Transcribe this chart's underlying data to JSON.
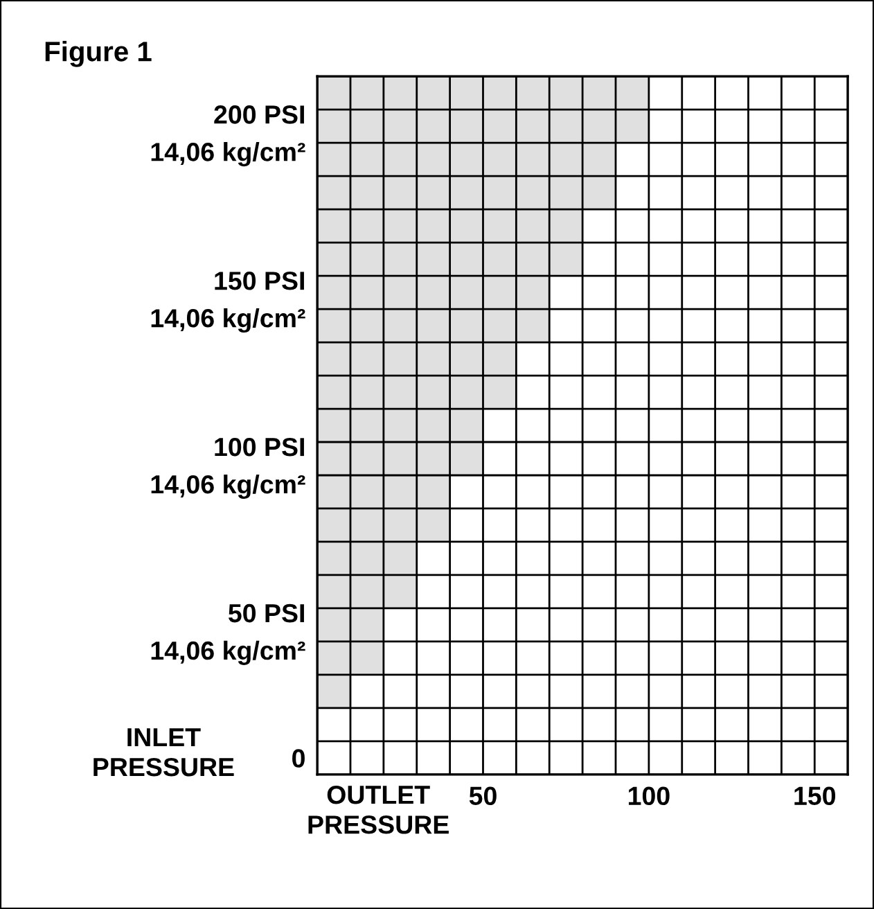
{
  "chart_data": {
    "type": "bar",
    "orientation": "horizontal",
    "title": "Figure 1",
    "xlabel": "OUTLET\nPRESSURE",
    "ylabel": "INLET\nPRESSURE",
    "categories": [
      null,
      "200 PSI\n14,06 kg/cm²",
      null,
      null,
      null,
      null,
      "150 PSI\n14,06 kg/cm²",
      null,
      null,
      null,
      null,
      "100 PSI\n14,06 kg/cm²",
      null,
      null,
      null,
      null,
      "50 PSI\n14,06 kg/cm²",
      null,
      null,
      null,
      "0"
    ],
    "values": [
      100,
      100,
      90,
      90,
      80,
      80,
      70,
      70,
      60,
      60,
      50,
      50,
      40,
      40,
      30,
      30,
      20,
      20,
      10,
      0,
      0
    ],
    "color": "#e0e0e0",
    "xlim": [
      0,
      160
    ],
    "xticks": [
      {
        "value": 0,
        "label": null
      },
      {
        "value": 10,
        "label": null
      },
      {
        "value": 20,
        "label": null
      },
      {
        "value": 30,
        "label": null
      },
      {
        "value": 40,
        "label": null
      },
      50,
      {
        "value": 60,
        "label": null
      },
      {
        "value": 70,
        "label": null
      },
      {
        "value": 80,
        "label": null
      },
      {
        "value": 90,
        "label": null
      },
      100,
      {
        "value": 110,
        "label": null
      },
      {
        "value": 120,
        "label": null
      },
      {
        "value": 130,
        "label": null
      },
      {
        "value": 140,
        "label": null
      },
      150,
      {
        "value": 160,
        "label": null
      }
    ],
    "grid": true
  }
}
